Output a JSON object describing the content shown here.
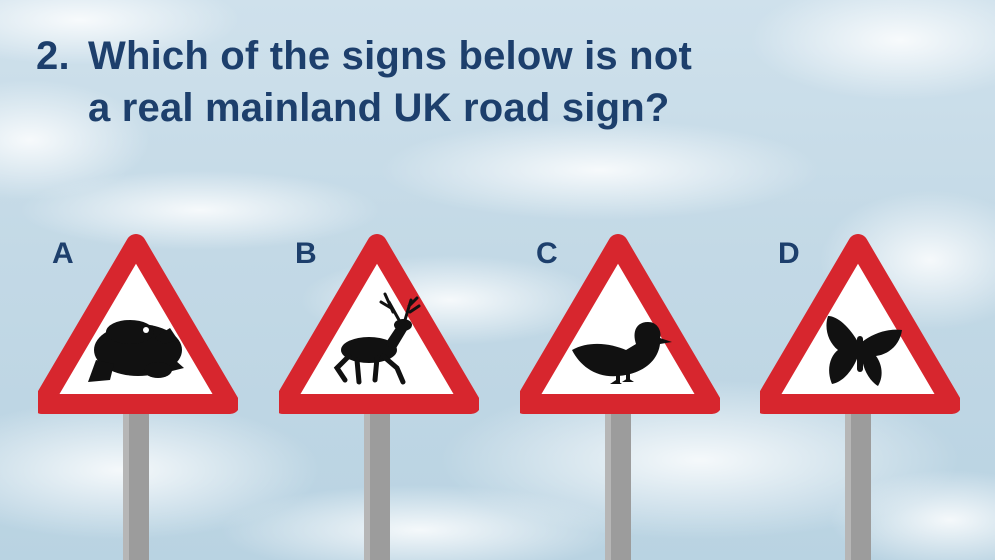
{
  "question": {
    "number": "2.",
    "line1": "Which of the signs below is not",
    "line2": "a real mainland UK road sign?"
  },
  "options": [
    {
      "letter": "A",
      "icon": "toad-icon"
    },
    {
      "letter": "B",
      "icon": "deer-icon"
    },
    {
      "letter": "C",
      "icon": "duck-icon"
    },
    {
      "letter": "D",
      "icon": "butterfly-icon"
    }
  ],
  "colors": {
    "text": "#1d3f6c",
    "sign_border": "#d7262e",
    "sign_fill": "#ffffff",
    "pole": "#9c9c9c",
    "silhouette": "#111111"
  }
}
